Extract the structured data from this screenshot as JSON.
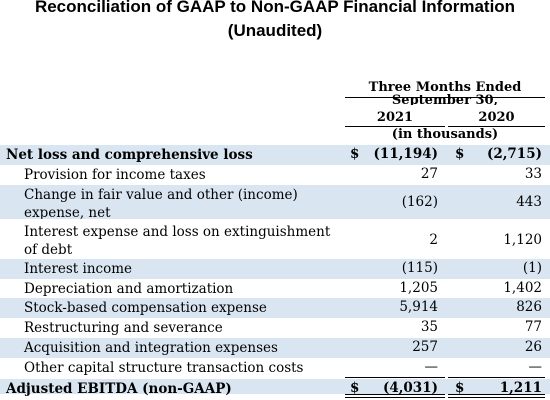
{
  "title_line1": "Reconciliation of GAAP to Non-GAAP Financial Information",
  "title_line2": "(Unaudited)",
  "header": {
    "period_line1": "Three Months Ended",
    "period_line2": "September 30,",
    "year1": "2021",
    "year2": "2020",
    "units": "(in thousands)"
  },
  "rows": [
    {
      "label": "Net loss and comprehensive loss",
      "dollar1": "$",
      "v2021": "(11,194)",
      "dollar2": "$",
      "v2020": "(2,715)"
    },
    {
      "label": "Provision for income taxes",
      "v2021": "27",
      "v2020": "33"
    },
    {
      "label": "Change in fair value and other (income) expense, net",
      "v2021": "(162)",
      "v2020": "443"
    },
    {
      "label": "Interest expense and loss on extinguishment of debt",
      "v2021": "2",
      "v2020": "1,120"
    },
    {
      "label": "Interest income",
      "v2021": "(115)",
      "v2020": "(1)"
    },
    {
      "label": "Depreciation and amortization",
      "v2021": "1,205",
      "v2020": "1,402"
    },
    {
      "label": "Stock-based compensation expense",
      "v2021": "5,914",
      "v2020": "826"
    },
    {
      "label": "Restructuring and severance",
      "v2021": "35",
      "v2020": "77"
    },
    {
      "label": "Acquisition and integration expenses",
      "v2021": "257",
      "v2020": "26"
    },
    {
      "label": "Other capital structure transaction costs",
      "v2021": "—",
      "v2020": "—"
    },
    {
      "label": "Adjusted EBITDA (non-GAAP)",
      "dollar1": "$",
      "v2021": "(4,031)",
      "dollar2": "$",
      "v2020": "1,211"
    }
  ],
  "colors": {
    "shade": "#d9e6f2"
  }
}
